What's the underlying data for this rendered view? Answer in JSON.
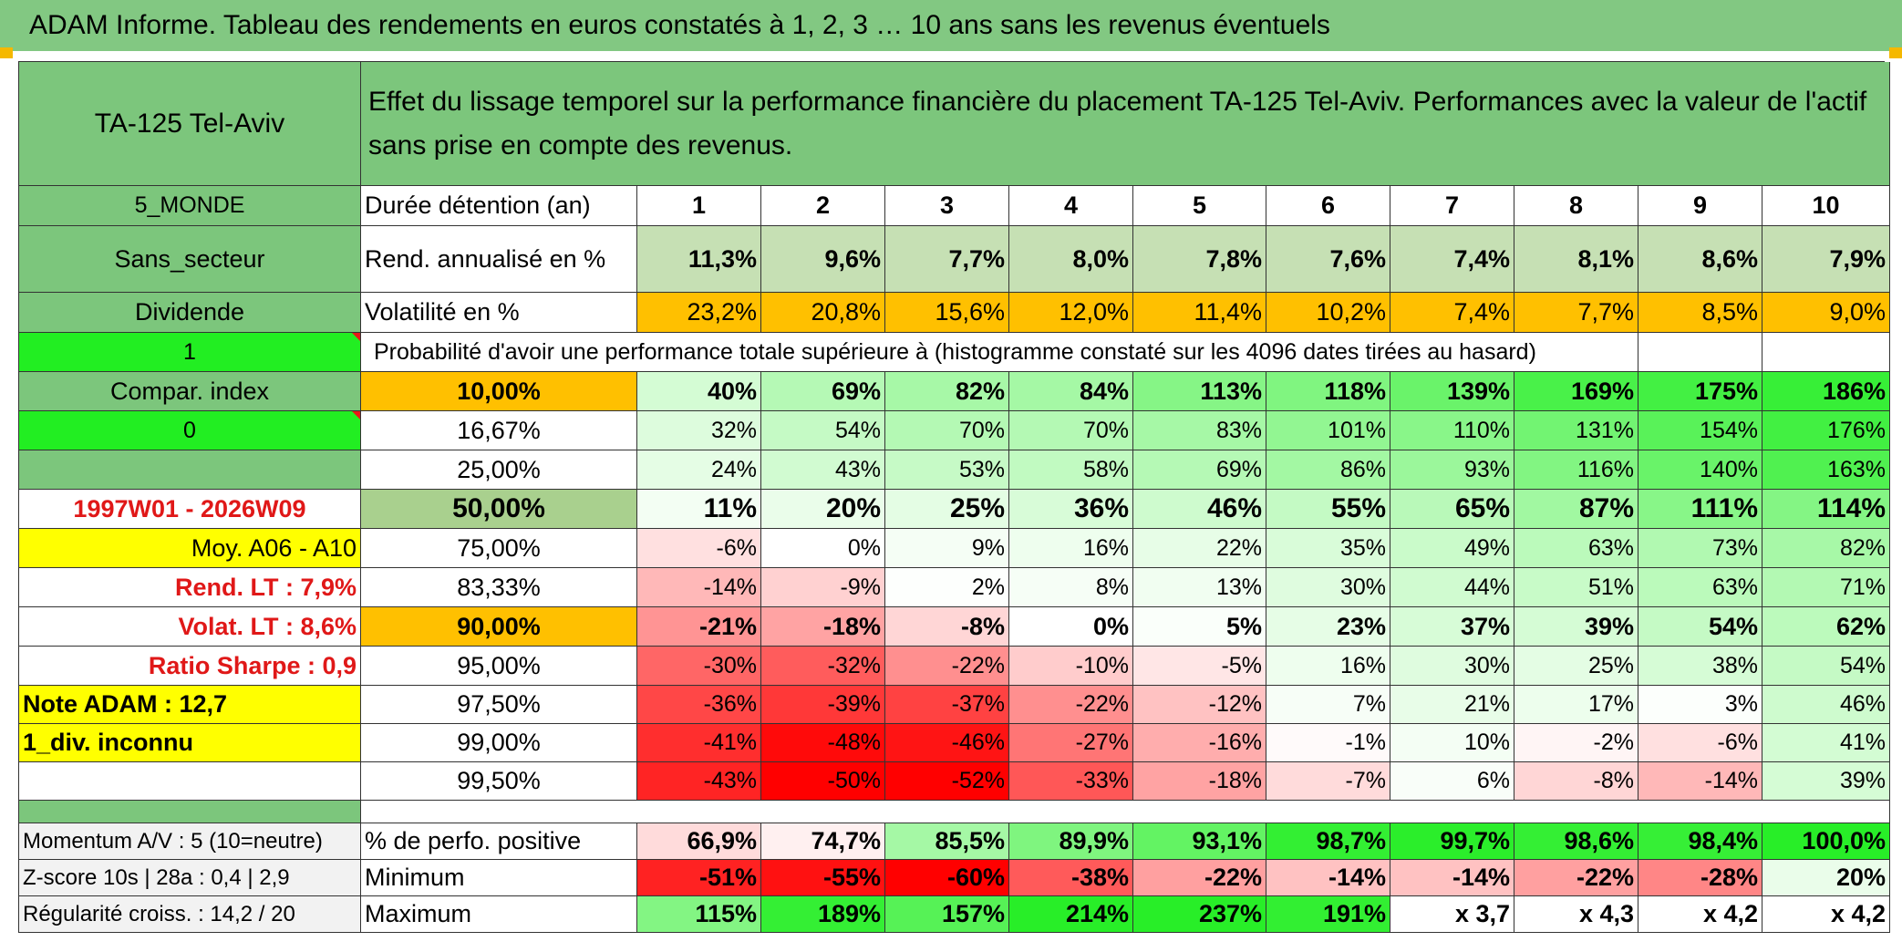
{
  "title": "ADAM Informe. Tableau des rendements en euros constatés à 1, 2, 3 … 10 ans sans les revenus éventuels",
  "left_panel": {
    "asset_name": "TA-125 Tel-Aviv",
    "zone": "5_MONDE",
    "sector": "Sans_secteur",
    "dividend_label": "Dividende",
    "dividend_flag": "1",
    "compar_label": "Compar. index",
    "compar_flag": "0",
    "period": "1997W01 - 2026W09",
    "moy": "Moy. A06 - A10",
    "rend_lt": "Rend. LT :   7,9%",
    "volat_lt": "Volat. LT :   8,6%",
    "sharpe": "Ratio Sharpe :   0,9",
    "note_adam": "Note ADAM : 12,7",
    "div_info": "1_div. inconnu",
    "momentum": "Momentum A/V : 5 (10=neutre)",
    "zscore": "Z-score 10s | 28a : 0,4 | 2,9",
    "regularite": "Régularité croiss. : 14,2 / 20"
  },
  "description": "Effet du lissage temporel sur la performance financière du placement TA-125 Tel-Aviv. Performances avec la valeur de l'actif sans prise en compte des revenus.",
  "table": {
    "years_label": "Durée détention (an)",
    "years": [
      "1",
      "2",
      "3",
      "4",
      "5",
      "6",
      "7",
      "8",
      "9",
      "10"
    ],
    "rend_label": "Rend. annualisé en %",
    "rend_values": [
      "11,3%",
      "9,6%",
      "7,7%",
      "8,0%",
      "7,8%",
      "7,6%",
      "7,4%",
      "8,1%",
      "8,6%",
      "7,9%"
    ],
    "vol_label": "Volatilité en %",
    "vol_values": [
      "23,2%",
      "20,8%",
      "15,6%",
      "12,0%",
      "11,4%",
      "10,2%",
      "7,4%",
      "7,7%",
      "8,5%",
      "9,0%"
    ],
    "prob_header": "Probabilité d'avoir une performance totale supérieure à (histogramme constaté sur les 4096 dates tirées au hasard)",
    "prob_rows": [
      {
        "threshold": "10,00%",
        "values": [
          "40%",
          "69%",
          "82%",
          "84%",
          "113%",
          "118%",
          "139%",
          "169%",
          "175%",
          "186%"
        ]
      },
      {
        "threshold": "16,67%",
        "values": [
          "32%",
          "54%",
          "70%",
          "70%",
          "83%",
          "101%",
          "110%",
          "131%",
          "154%",
          "176%"
        ]
      },
      {
        "threshold": "25,00%",
        "values": [
          "24%",
          "43%",
          "53%",
          "58%",
          "69%",
          "86%",
          "93%",
          "116%",
          "140%",
          "163%"
        ]
      },
      {
        "threshold": "50,00%",
        "values": [
          "11%",
          "20%",
          "25%",
          "36%",
          "46%",
          "55%",
          "65%",
          "87%",
          "111%",
          "114%"
        ]
      },
      {
        "threshold": "75,00%",
        "values": [
          "-6%",
          "0%",
          "9%",
          "16%",
          "22%",
          "35%",
          "49%",
          "63%",
          "73%",
          "82%"
        ]
      },
      {
        "threshold": "83,33%",
        "values": [
          "-14%",
          "-9%",
          "2%",
          "8%",
          "13%",
          "30%",
          "44%",
          "51%",
          "63%",
          "71%"
        ]
      },
      {
        "threshold": "90,00%",
        "values": [
          "-21%",
          "-18%",
          "-8%",
          "0%",
          "5%",
          "23%",
          "37%",
          "39%",
          "54%",
          "62%"
        ]
      },
      {
        "threshold": "95,00%",
        "values": [
          "-30%",
          "-32%",
          "-22%",
          "-10%",
          "-5%",
          "16%",
          "30%",
          "25%",
          "38%",
          "54%"
        ]
      },
      {
        "threshold": "97,50%",
        "values": [
          "-36%",
          "-39%",
          "-37%",
          "-22%",
          "-12%",
          "7%",
          "21%",
          "17%",
          "3%",
          "46%"
        ]
      },
      {
        "threshold": "99,00%",
        "values": [
          "-41%",
          "-48%",
          "-46%",
          "-27%",
          "-16%",
          "-1%",
          "10%",
          "-2%",
          "-6%",
          "41%"
        ]
      },
      {
        "threshold": "99,50%",
        "values": [
          "-43%",
          "-50%",
          "-52%",
          "-33%",
          "-18%",
          "-7%",
          "6%",
          "-8%",
          "-14%",
          "39%"
        ]
      }
    ],
    "pos_label": "% de perfo. positive",
    "pos_values": [
      "66,9%",
      "74,7%",
      "85,5%",
      "89,9%",
      "93,1%",
      "98,7%",
      "99,7%",
      "98,6%",
      "98,4%",
      "100,0%"
    ],
    "min_label": "Minimum",
    "min_values": [
      "-51%",
      "-55%",
      "-60%",
      "-38%",
      "-22%",
      "-14%",
      "-14%",
      "-22%",
      "-28%",
      "20%"
    ],
    "max_label": "Maximum",
    "max_values": [
      "115%",
      "189%",
      "157%",
      "214%",
      "237%",
      "191%",
      "x 3,7",
      "x 4,3",
      "x 4,2",
      "x 4,2"
    ]
  },
  "colors": {
    "banner_green": "#82c882",
    "header_green": "#7cc67c",
    "bright_green": "#22ee22",
    "yellow": "#ffff00",
    "orange": "#ffc000",
    "label_red": "#e01818",
    "light_gray": "#f2f2f2"
  }
}
